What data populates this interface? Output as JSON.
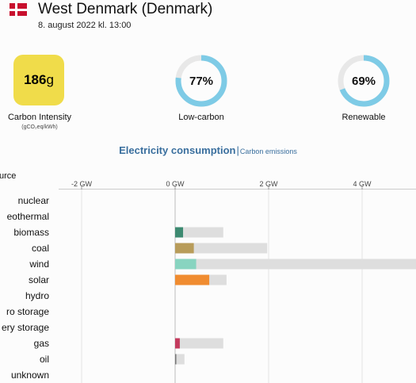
{
  "header": {
    "flag_icon": "denmark-flag-icon",
    "title": "West Denmark (Denmark)",
    "date": "8. august 2022 kl. 13:00"
  },
  "carbon_intensity": {
    "value": "186",
    "unit": "g",
    "label": "Carbon Intensity",
    "sublabel": "(gCO₂eq/kWh)",
    "color": "#f0dc4a"
  },
  "low_carbon": {
    "value": "77%",
    "fraction": 0.77,
    "label": "Low-carbon"
  },
  "renewable": {
    "value": "69%",
    "fraction": 0.69,
    "label": "Renewable"
  },
  "ring_colors": {
    "fill": "#7ecbe6",
    "track": "#e8e8e8"
  },
  "tabs": {
    "active": "Electricity consumption",
    "separator": "|",
    "other": "Carbon emissions"
  },
  "chart_data": {
    "type": "bar",
    "header_label": "urce",
    "x_axis": {
      "ticks": [
        {
          "value": -2,
          "label": "-2 GW"
        },
        {
          "value": 0,
          "label": "0 GW"
        },
        {
          "value": 2,
          "label": "2 GW"
        },
        {
          "value": 4,
          "label": "4 GW"
        }
      ],
      "visible_range": [
        -2.55,
        5.2
      ]
    },
    "categories": [
      "nuclear",
      "eothermal",
      "biomass",
      "coal",
      "wind",
      "solar",
      "hydro",
      "ro storage",
      "ery storage",
      "gas",
      "oil",
      "unknown"
    ],
    "series": [
      {
        "values": [
          0,
          0,
          0.17,
          0.4,
          0.45,
          0.73,
          0,
          0,
          0,
          0.1,
          0.02,
          0
        ]
      },
      {
        "values": [
          0,
          0,
          1.03,
          1.97,
          5.2,
          1.1,
          0,
          0,
          0,
          1.03,
          0.2,
          0
        ]
      }
    ],
    "colors": [
      "#d2d2d2",
      "#d2d2d2",
      "#3d8a71",
      "#b89c5a",
      "#88d4c0",
      "#f08c30",
      "#2a6fb0",
      "#2a6fb0",
      "#2a6fb0",
      "#c43b5e",
      "#777777",
      "#999999"
    ],
    "capacity_color": "#dedede",
    "grid": true
  }
}
